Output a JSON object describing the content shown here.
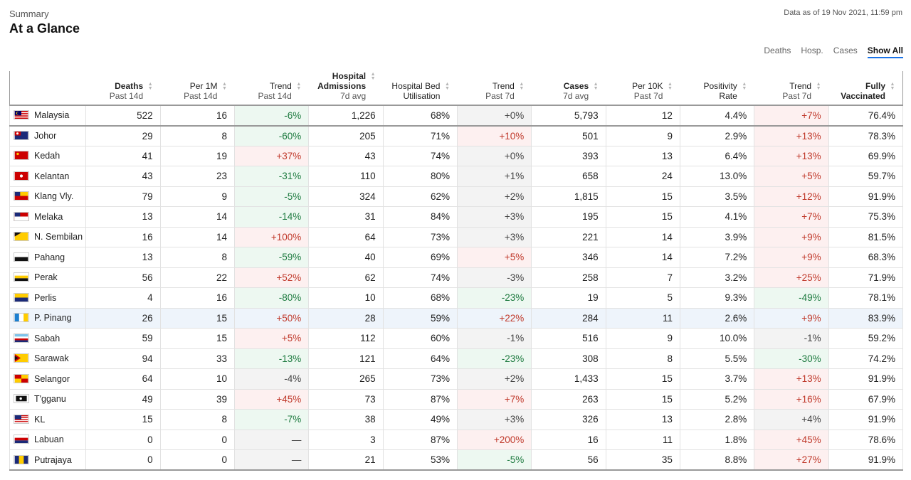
{
  "header": {
    "subtitle": "Summary",
    "title": "At a Glance",
    "as_of": "Data as of 19 Nov 2021, 11:59 pm"
  },
  "filters": [
    {
      "label": "Deaths",
      "active": false
    },
    {
      "label": "Hosp.",
      "active": false
    },
    {
      "label": "Cases",
      "active": false
    },
    {
      "label": "Show All",
      "active": true
    }
  ],
  "columns": [
    {
      "line1": "Deaths",
      "line2": "Past 14d",
      "bold": true
    },
    {
      "line1": "Per 1M",
      "line2": "Past 14d",
      "bold": false
    },
    {
      "line1": "Trend",
      "line2": "Past 14d",
      "bold": false
    },
    {
      "line0": "Hospital",
      "line1": "Admissions",
      "line2": "7d avg",
      "bold": true
    },
    {
      "line1": "Hospital Bed",
      "line2": "Utilisation",
      "bold": false
    },
    {
      "line1": "Trend",
      "line2": "Past 7d",
      "bold": false
    },
    {
      "line1": "Cases",
      "line2": "7d avg",
      "bold": true
    },
    {
      "line1": "Per 10K",
      "line2": "Past 7d",
      "bold": false
    },
    {
      "line1": "Positivity",
      "line2": "Rate",
      "bold": false
    },
    {
      "line1": "Trend",
      "line2": "Past 7d",
      "bold": false
    },
    {
      "line1": "Fully",
      "line2": "Vaccinated",
      "bold": true
    }
  ],
  "rows": [
    {
      "state": "Malaysia",
      "flag": "malaysia-flag",
      "cells": [
        "522",
        "16",
        "-6%",
        "1,226",
        "68%",
        "+0%",
        "5,793",
        "12",
        "4.4%",
        "+7%",
        "76.4%"
      ]
    },
    {
      "state": "Johor",
      "flag": "johor-flag",
      "cells": [
        "29",
        "8",
        "-60%",
        "205",
        "71%",
        "+10%",
        "501",
        "9",
        "2.9%",
        "+13%",
        "78.3%"
      ]
    },
    {
      "state": "Kedah",
      "flag": "kedah-flag",
      "cells": [
        "41",
        "19",
        "+37%",
        "43",
        "74%",
        "+0%",
        "393",
        "13",
        "6.4%",
        "+13%",
        "69.9%"
      ]
    },
    {
      "state": "Kelantan",
      "flag": "kelantan-flag",
      "cells": [
        "43",
        "23",
        "-31%",
        "110",
        "80%",
        "+1%",
        "658",
        "24",
        "13.0%",
        "+5%",
        "59.7%"
      ]
    },
    {
      "state": "Klang Vly.",
      "flag": "klang-valley-flag",
      "cells": [
        "79",
        "9",
        "-5%",
        "324",
        "62%",
        "+2%",
        "1,815",
        "15",
        "3.5%",
        "+12%",
        "91.9%"
      ]
    },
    {
      "state": "Melaka",
      "flag": "melaka-flag",
      "cells": [
        "13",
        "14",
        "-14%",
        "31",
        "84%",
        "+3%",
        "195",
        "15",
        "4.1%",
        "+7%",
        "75.3%"
      ]
    },
    {
      "state": "N. Sembilan",
      "flag": "negeri-sembilan-flag",
      "cells": [
        "16",
        "14",
        "+100%",
        "64",
        "73%",
        "+3%",
        "221",
        "14",
        "3.9%",
        "+9%",
        "81.5%"
      ]
    },
    {
      "state": "Pahang",
      "flag": "pahang-flag",
      "cells": [
        "13",
        "8",
        "-59%",
        "40",
        "69%",
        "+5%",
        "346",
        "14",
        "7.2%",
        "+9%",
        "68.3%"
      ]
    },
    {
      "state": "Perak",
      "flag": "perak-flag",
      "cells": [
        "56",
        "22",
        "+52%",
        "62",
        "74%",
        "-3%",
        "258",
        "7",
        "3.2%",
        "+25%",
        "71.9%"
      ]
    },
    {
      "state": "Perlis",
      "flag": "perlis-flag",
      "cells": [
        "4",
        "16",
        "-80%",
        "10",
        "68%",
        "-23%",
        "19",
        "5",
        "9.3%",
        "-49%",
        "78.1%"
      ]
    },
    {
      "state": "P. Pinang",
      "flag": "penang-flag",
      "cells": [
        "26",
        "15",
        "+50%",
        "28",
        "59%",
        "+22%",
        "284",
        "11",
        "2.6%",
        "+9%",
        "83.9%"
      ]
    },
    {
      "state": "Sabah",
      "flag": "sabah-flag",
      "cells": [
        "59",
        "15",
        "+5%",
        "112",
        "60%",
        "-1%",
        "516",
        "9",
        "10.0%",
        "-1%",
        "59.2%"
      ]
    },
    {
      "state": "Sarawak",
      "flag": "sarawak-flag",
      "cells": [
        "94",
        "33",
        "-13%",
        "121",
        "64%",
        "-23%",
        "308",
        "8",
        "5.5%",
        "-30%",
        "74.2%"
      ]
    },
    {
      "state": "Selangor",
      "flag": "selangor-flag",
      "cells": [
        "64",
        "10",
        "-4%",
        "265",
        "73%",
        "+2%",
        "1,433",
        "15",
        "3.7%",
        "+13%",
        "91.9%"
      ]
    },
    {
      "state": "T'gganu",
      "flag": "terengganu-flag",
      "cells": [
        "49",
        "39",
        "+45%",
        "73",
        "87%",
        "+7%",
        "263",
        "15",
        "5.2%",
        "+16%",
        "67.9%"
      ]
    },
    {
      "state": "KL",
      "flag": "kuala-lumpur-flag",
      "cells": [
        "15",
        "8",
        "-7%",
        "38",
        "49%",
        "+3%",
        "326",
        "13",
        "2.8%",
        "+4%",
        "91.9%"
      ]
    },
    {
      "state": "Labuan",
      "flag": "labuan-flag",
      "cells": [
        "0",
        "0",
        "—",
        "3",
        "87%",
        "+200%",
        "16",
        "11",
        "1.8%",
        "+45%",
        "78.6%"
      ]
    },
    {
      "state": "Putrajaya",
      "flag": "putrajaya-flag",
      "cells": [
        "0",
        "0",
        "—",
        "21",
        "53%",
        "-5%",
        "56",
        "35",
        "8.8%",
        "+27%",
        "91.9%"
      ]
    }
  ],
  "highlighted_row": "P. Pinang",
  "colors": {
    "positive_bg": "#fdf0f0",
    "positive_text": "#c0392b",
    "negative_bg": "#edf8f1",
    "negative_text": "#1d7a3f",
    "neutral_bg": "#f3f3f3",
    "highlight_bg": "#eef4fb"
  }
}
